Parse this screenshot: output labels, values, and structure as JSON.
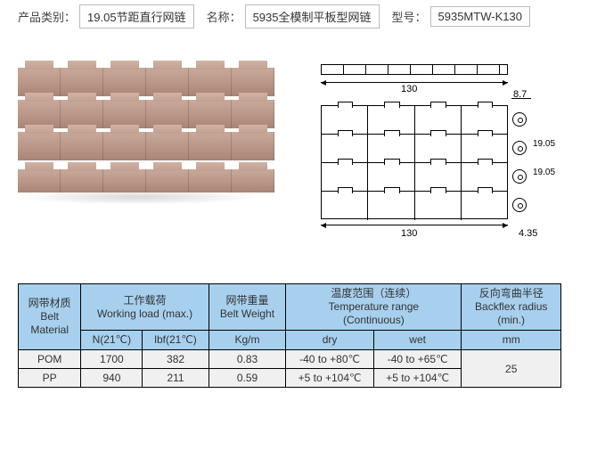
{
  "header": {
    "category_label": "产品类别：",
    "category_value": "19.05节距直行网链",
    "name_label": "名称：",
    "name_value": "5935全模制平板型网链",
    "model_label": "型号：",
    "model_value": "5935MTW-K130"
  },
  "diagram_dims": {
    "width_top": "130",
    "width_bottom": "130",
    "thickness": "8.7",
    "pitch_a": "19.05",
    "pitch_b": "19.05",
    "bottom_offset": "4.35"
  },
  "table": {
    "headers": {
      "material": "网带材质\nBelt\nMaterial",
      "load": "工作载荷\nWorking load (max.)",
      "weight": "网带重量\nBelt Weight",
      "temp": "温度范围（连续）\nTemperature range\n(Continuous)",
      "backflex": "反向弯曲半径\nBackflex radius\n(min.)"
    },
    "subheaders": {
      "load_n": "N(21℃)",
      "load_lbf": "lbf(21℃)",
      "weight_unit": "Kg/m",
      "temp_dry": "dry",
      "temp_wet": "wet",
      "backflex_unit": "mm"
    },
    "rows": [
      {
        "mat": "POM",
        "n": "1700",
        "lbf": "382",
        "kg": "0.83",
        "dry": "-40 to +80℃",
        "wet": "-40 to +65℃"
      },
      {
        "mat": "PP",
        "n": "940",
        "lbf": "211",
        "kg": "0.59",
        "dry": "+5 to +104℃",
        "wet": "+5 to +104℃"
      }
    ],
    "backflex_value": "25"
  }
}
